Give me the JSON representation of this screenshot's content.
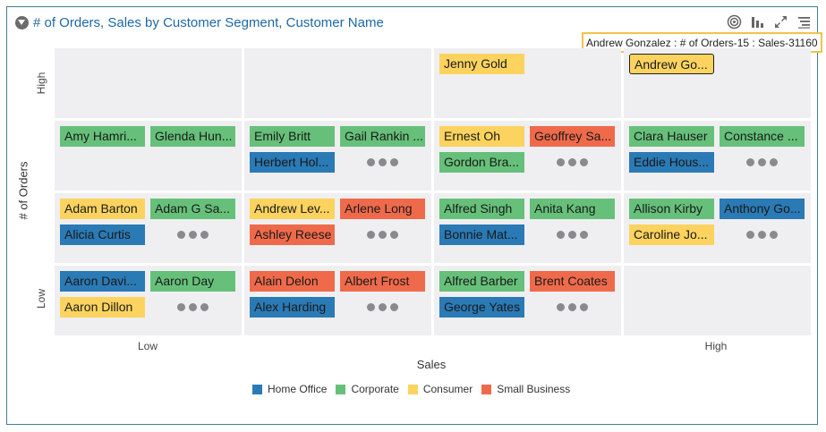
{
  "header": {
    "title": "# of Orders, Sales by Customer Segment, Customer Name"
  },
  "toolbar": {
    "icons": [
      "target-icon",
      "bar-chart-icon",
      "expand-icon",
      "menu-icon"
    ]
  },
  "tooltip": {
    "text": "Andrew Gonzalez : # of Orders-15 : Sales-31160"
  },
  "colors": {
    "Home Office": "#2a7ab5",
    "Corporate": "#66c07a",
    "Consumer": "#fbd35e",
    "Small Business": "#ef6a4b"
  },
  "chart_data": {
    "type": "heatmap",
    "title": "# of Orders, Sales by Customer Segment, Customer Name",
    "xlabel": "Sales",
    "ylabel": "# of Orders",
    "x_ticks": [
      "Low",
      "High"
    ],
    "y_ticks": [
      "High",
      "Low"
    ],
    "legend": {
      "position": "bottom",
      "entries": [
        "Home Office",
        "Corporate",
        "Consumer",
        "Small Business"
      ]
    },
    "rows": 4,
    "cols": 4,
    "cells": [
      {
        "row": 0,
        "col": 0,
        "items": [],
        "more": false
      },
      {
        "row": 0,
        "col": 1,
        "items": [],
        "more": false
      },
      {
        "row": 0,
        "col": 2,
        "items": [
          {
            "name": "Jenny Gold",
            "segment": "Consumer"
          }
        ],
        "more": false
      },
      {
        "row": 0,
        "col": 3,
        "items": [
          {
            "name": "Andrew Go...",
            "segment": "Consumer",
            "selected": true
          }
        ],
        "more": false
      },
      {
        "row": 1,
        "col": 0,
        "items": [
          {
            "name": "Amy Hamri...",
            "segment": "Corporate"
          },
          {
            "name": "Glenda Hun...",
            "segment": "Corporate"
          }
        ],
        "more": false
      },
      {
        "row": 1,
        "col": 1,
        "items": [
          {
            "name": "Emily Britt",
            "segment": "Corporate"
          },
          {
            "name": "Gail Rankin ...",
            "segment": "Corporate"
          },
          {
            "name": "Herbert Hol...",
            "segment": "Home Office"
          }
        ],
        "more": true
      },
      {
        "row": 1,
        "col": 2,
        "items": [
          {
            "name": "Ernest Oh",
            "segment": "Consumer"
          },
          {
            "name": "Geoffrey Sa...",
            "segment": "Small Business"
          },
          {
            "name": "Gordon Bra...",
            "segment": "Corporate"
          }
        ],
        "more": true
      },
      {
        "row": 1,
        "col": 3,
        "items": [
          {
            "name": "Clara Hauser",
            "segment": "Corporate"
          },
          {
            "name": "Constance ...",
            "segment": "Corporate"
          },
          {
            "name": "Eddie Hous...",
            "segment": "Home Office"
          }
        ],
        "more": true
      },
      {
        "row": 2,
        "col": 0,
        "items": [
          {
            "name": "Adam Barton",
            "segment": "Consumer"
          },
          {
            "name": "Adam G Sa...",
            "segment": "Corporate"
          },
          {
            "name": "Alicia Curtis",
            "segment": "Home Office"
          }
        ],
        "more": true
      },
      {
        "row": 2,
        "col": 1,
        "items": [
          {
            "name": "Andrew Lev...",
            "segment": "Consumer"
          },
          {
            "name": "Arlene Long",
            "segment": "Small Business"
          },
          {
            "name": "Ashley Reese",
            "segment": "Small Business"
          }
        ],
        "more": true
      },
      {
        "row": 2,
        "col": 2,
        "items": [
          {
            "name": "Alfred Singh",
            "segment": "Corporate"
          },
          {
            "name": "Anita Kang",
            "segment": "Corporate"
          },
          {
            "name": "Bonnie Mat...",
            "segment": "Home Office"
          }
        ],
        "more": true
      },
      {
        "row": 2,
        "col": 3,
        "items": [
          {
            "name": "Allison Kirby",
            "segment": "Corporate"
          },
          {
            "name": "Anthony Go...",
            "segment": "Home Office"
          },
          {
            "name": "Caroline Jo...",
            "segment": "Consumer"
          }
        ],
        "more": true
      },
      {
        "row": 3,
        "col": 0,
        "items": [
          {
            "name": "Aaron Davi...",
            "segment": "Home Office"
          },
          {
            "name": "Aaron Day",
            "segment": "Corporate"
          },
          {
            "name": "Aaron Dillon",
            "segment": "Consumer"
          }
        ],
        "more": true
      },
      {
        "row": 3,
        "col": 1,
        "items": [
          {
            "name": "Alain Delon",
            "segment": "Small Business"
          },
          {
            "name": "Albert Frost",
            "segment": "Small Business"
          },
          {
            "name": "Alex Harding",
            "segment": "Home Office"
          }
        ],
        "more": true
      },
      {
        "row": 3,
        "col": 2,
        "items": [
          {
            "name": "Alfred Barber",
            "segment": "Corporate"
          },
          {
            "name": "Brent Coates",
            "segment": "Small Business"
          },
          {
            "name": "George Yates",
            "segment": "Home Office"
          }
        ],
        "more": true
      },
      {
        "row": 3,
        "col": 3,
        "items": [],
        "more": false
      }
    ]
  }
}
